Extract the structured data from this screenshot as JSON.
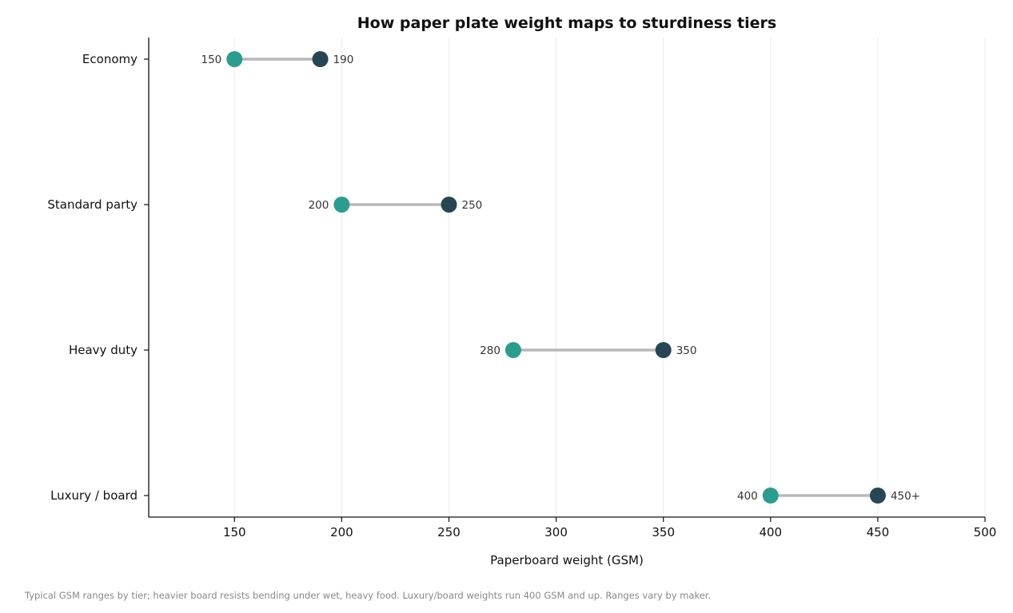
{
  "chart_data": {
    "type": "dumbbell",
    "title": "How paper plate weight maps to sturdiness tiers",
    "xlabel": "Paperboard weight (GSM)",
    "ylabel": "",
    "xlim": [
      110,
      500
    ],
    "xticks": [
      150,
      200,
      250,
      300,
      350,
      400,
      450,
      500
    ],
    "grid": "vertical",
    "categories": [
      "Economy",
      "Standard party",
      "Heavy duty",
      "Luxury / board"
    ],
    "series": [
      {
        "values": [
          150,
          200,
          280,
          400
        ],
        "labels": [
          "150",
          "200",
          "280",
          "400"
        ],
        "color": "#2a9d8f"
      },
      {
        "values": [
          190,
          250,
          350,
          450
        ],
        "labels": [
          "190",
          "250",
          "350",
          "450+"
        ],
        "color": "#264653"
      }
    ],
    "connector_color": "#b8b8b8",
    "footnote": "Typical GSM ranges by tier; heavier board resists bending under wet, heavy food. Luxury/board weights run 400 GSM and up. Ranges vary by maker."
  }
}
